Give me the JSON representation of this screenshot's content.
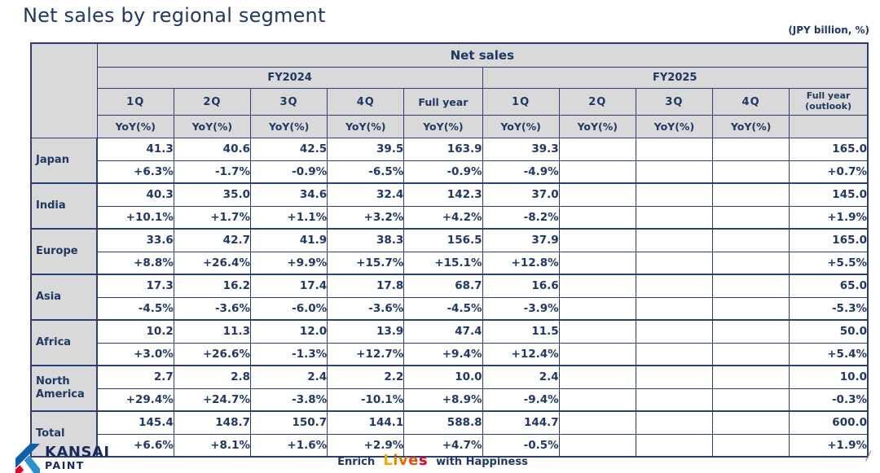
{
  "slide": {
    "title": "Net sales by regional segment",
    "unit_note": "(JPY billion, %)",
    "page_divider": "/"
  },
  "table": {
    "group_header": "Net sales",
    "fiscal_years": [
      "FY2024",
      "FY2025"
    ],
    "quarter_headers_fy2024": [
      "1Q",
      "2Q",
      "3Q",
      "4Q",
      "Full year"
    ],
    "quarter_headers_fy2025": [
      "1Q",
      "2Q",
      "3Q",
      "4Q"
    ],
    "outlook_header": {
      "line1": "Full year",
      "line2": "(outlook)"
    },
    "yoy_label": "YoY(%)",
    "rows": [
      {
        "region": "Japan",
        "fy2024_values": [
          "41.3",
          "40.6",
          "42.5",
          "39.5",
          "163.9"
        ],
        "fy2024_yoy": [
          "+6.3%",
          "-1.7%",
          "-0.9%",
          "-6.5%",
          "-0.9%"
        ],
        "fy2025_values": [
          "39.3",
          "",
          "",
          "",
          "165.0"
        ],
        "fy2025_yoy": [
          "-4.9%",
          "",
          "",
          "",
          "+0.7%"
        ]
      },
      {
        "region": "India",
        "fy2024_values": [
          "40.3",
          "35.0",
          "34.6",
          "32.4",
          "142.3"
        ],
        "fy2024_yoy": [
          "+10.1%",
          "+1.7%",
          "+1.1%",
          "+3.2%",
          "+4.2%"
        ],
        "fy2025_values": [
          "37.0",
          "",
          "",
          "",
          "145.0"
        ],
        "fy2025_yoy": [
          "-8.2%",
          "",
          "",
          "",
          "+1.9%"
        ]
      },
      {
        "region": "Europe",
        "fy2024_values": [
          "33.6",
          "42.7",
          "41.9",
          "38.3",
          "156.5"
        ],
        "fy2024_yoy": [
          "+8.8%",
          "+26.4%",
          "+9.9%",
          "+15.7%",
          "+15.1%"
        ],
        "fy2025_values": [
          "37.9",
          "",
          "",
          "",
          "165.0"
        ],
        "fy2025_yoy": [
          "+12.8%",
          "",
          "",
          "",
          "+5.5%"
        ]
      },
      {
        "region": "Asia",
        "fy2024_values": [
          "17.3",
          "16.2",
          "17.4",
          "17.8",
          "68.7"
        ],
        "fy2024_yoy": [
          "-4.5%",
          "-3.6%",
          "-6.0%",
          "-3.6%",
          "-4.5%"
        ],
        "fy2025_values": [
          "16.6",
          "",
          "",
          "",
          "65.0"
        ],
        "fy2025_yoy": [
          "-3.9%",
          "",
          "",
          "",
          "-5.3%"
        ]
      },
      {
        "region": "Africa",
        "fy2024_values": [
          "10.2",
          "11.3",
          "12.0",
          "13.9",
          "47.4"
        ],
        "fy2024_yoy": [
          "+3.0%",
          "+26.6%",
          "-1.3%",
          "+12.7%",
          "+9.4%"
        ],
        "fy2025_values": [
          "11.5",
          "",
          "",
          "",
          "50.0"
        ],
        "fy2025_yoy": [
          "+12.4%",
          "",
          "",
          "",
          "+5.4%"
        ]
      },
      {
        "region": "North America",
        "fy2024_values": [
          "2.7",
          "2.8",
          "2.4",
          "2.2",
          "10.0"
        ],
        "fy2024_yoy": [
          "+29.4%",
          "+24.7%",
          "-3.8%",
          "-10.1%",
          "+8.9%"
        ],
        "fy2025_values": [
          "2.4",
          "",
          "",
          "",
          "10.0"
        ],
        "fy2025_yoy": [
          "-9.4%",
          "",
          "",
          "",
          "-0.3%"
        ]
      },
      {
        "region": "Total",
        "fy2024_values": [
          "145.4",
          "148.7",
          "150.7",
          "144.1",
          "588.8"
        ],
        "fy2024_yoy": [
          "+6.6%",
          "+8.1%",
          "+1.6%",
          "+2.9%",
          "+4.7%"
        ],
        "fy2025_values": [
          "144.7",
          "",
          "",
          "",
          "600.0"
        ],
        "fy2025_yoy": [
          "-0.5%",
          "",
          "",
          "",
          "+1.9%"
        ]
      }
    ]
  },
  "footer": {
    "logo_main": "KANSAI",
    "logo_sub": "PAINT",
    "tagline_enrich": "Enrich",
    "tagline_lives": "Lives",
    "tagline_rest": "with Happiness",
    "lives_letter_colors": [
      "#F2A900",
      "#F08300",
      "#ED6C00",
      "#E94E0F",
      "#E60027"
    ]
  },
  "colors": {
    "navy_text": "#1F3864",
    "table_border": "#2E3D74",
    "header_bg": "#D9D9D9",
    "logo_blue": "#0E5FA8",
    "logo_light_blue": "#2B8FD0",
    "logo_red": "#E60027"
  }
}
